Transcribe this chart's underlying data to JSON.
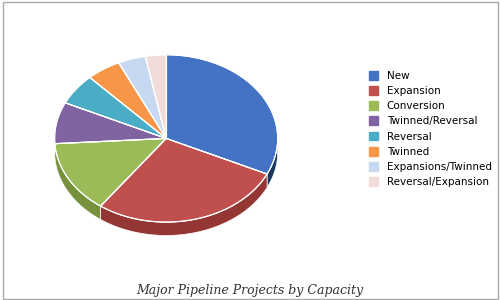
{
  "title": "Major Pipeline Projects by Capacity",
  "labels": [
    "New",
    "Expansion",
    "Conversion",
    "Twinned/Reversal",
    "Reversal",
    "Twinned",
    "Expansions/Twinned",
    "Reversal/Expansion"
  ],
  "values": [
    32,
    28,
    14,
    8,
    6,
    5,
    4,
    3
  ],
  "colors": [
    "#4472C4",
    "#C0504D",
    "#9BBB59",
    "#8064A2",
    "#4BACC6",
    "#F79646",
    "#C6D9F0",
    "#F2DCDB"
  ],
  "dark_colors": [
    "#17375E",
    "#943634",
    "#76923C",
    "#60497A",
    "#31849B",
    "#E36C09",
    "#95B3D7",
    "#E6B8B7"
  ],
  "start_angle": 90,
  "figsize": [
    5.0,
    3.0
  ],
  "dpi": 100,
  "background_color": "#FFFFFF",
  "depth": 0.12,
  "legend_fontsize": 7.5,
  "title_fontsize": 9
}
